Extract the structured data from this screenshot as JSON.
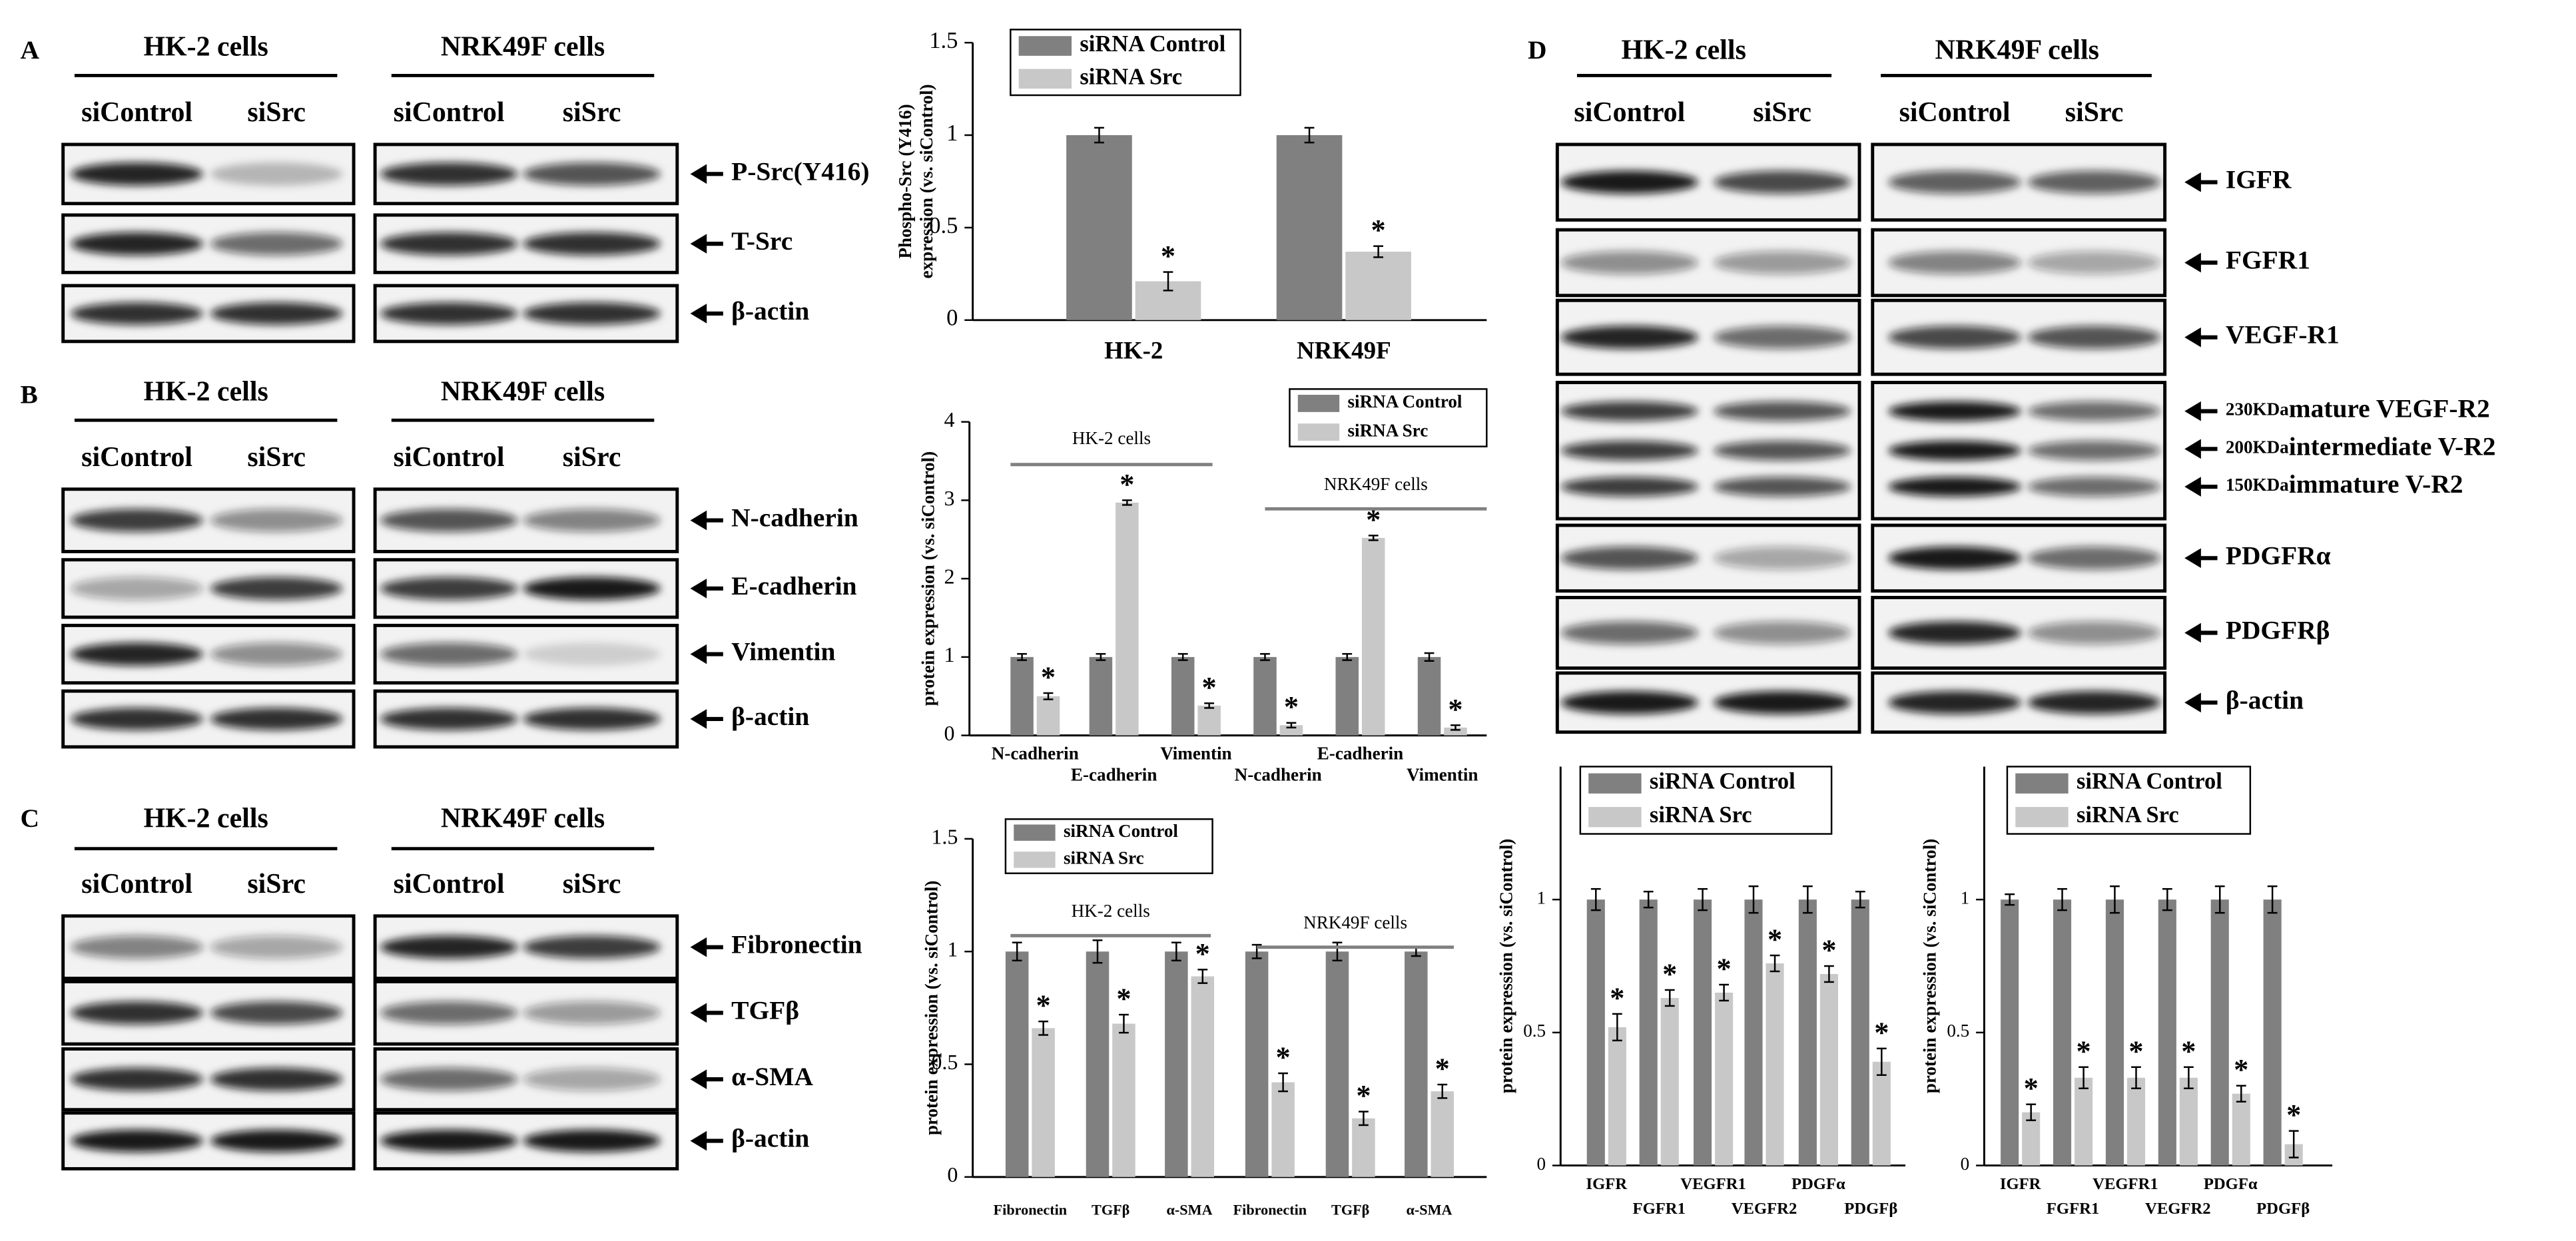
{
  "blots": [
    {
      "letter": "A",
      "cell_lines": [
        "HK-2 cells",
        "NRK49F cells"
      ],
      "conditions": [
        "siControl",
        "siSrc",
        "siControl",
        "siSrc"
      ],
      "proteins": [
        "P-Src(Y416)",
        "T-Src",
        "β-actin"
      ]
    },
    {
      "letter": "B",
      "cell_lines": [
        "HK-2 cells",
        "NRK49F cells"
      ],
      "conditions": [
        "siControl",
        "siSrc",
        "siControl",
        "siSrc"
      ],
      "proteins": [
        "N-cadherin",
        "E-cadherin",
        "Vimentin",
        "β-actin"
      ]
    },
    {
      "letter": "C",
      "cell_lines": [
        "HK-2 cells",
        "NRK49F cells"
      ],
      "conditions": [
        "siControl",
        "siSrc",
        "siControl",
        "siSrc"
      ],
      "proteins": [
        "Fibronectin",
        "TGFβ",
        "α-SMA",
        "β-actin"
      ]
    },
    {
      "letter": "D",
      "cell_lines": [
        "HK-2 cells",
        "NRK49F cells"
      ],
      "conditions": [
        "siControl",
        "siSrc",
        "siControl",
        "siSrc"
      ],
      "proteins": [
        "IGFR",
        "FGFR1",
        "VEGF-R1",
        [
          {
            "size": "230KDa",
            "name": "mature VEGF-R2"
          },
          {
            "size": "200KDa",
            "name": "intermediate V-R2"
          },
          {
            "size": "150KDa",
            "name": "immature V-R2"
          }
        ],
        "PDGFRα",
        "PDGFRβ",
        "β-actin"
      ]
    }
  ],
  "chart_data": [
    {
      "type": "bar",
      "y_label": [
        "Phospho-Src (Y416)",
        "expression (vs. siControl)"
      ],
      "categories": [
        "HK-2",
        "NRK49F"
      ],
      "series": [
        {
          "name": "siRNA Control",
          "color": "#808080",
          "values": [
            1,
            1
          ],
          "errors": [
            0.04,
            0.04
          ]
        },
        {
          "name": "siRNA Src",
          "color": "#c8c8c8",
          "values": [
            0.21,
            0.37
          ],
          "errors": [
            0.05,
            0.03
          ]
        }
      ],
      "ylim": [
        0,
        1.5
      ],
      "yticks": [
        0,
        0.5,
        1,
        1.5
      ],
      "significance": "*"
    },
    {
      "type": "bar",
      "y_label": [
        "protein expression (vs. siControl)"
      ],
      "group_labels": [
        "HK-2 cells",
        "NRK49F cells"
      ],
      "categories": [
        "N-cadherin",
        "E-cadherin",
        "Vimentin",
        "N-cadherin",
        "E-cadherin",
        "Vimentin"
      ],
      "series": [
        {
          "name": "siRNA Control",
          "color": "#808080",
          "values": [
            1,
            1,
            1,
            1,
            1,
            1
          ],
          "errors": [
            0.04,
            0.04,
            0.04,
            0.04,
            0.04,
            0.05
          ]
        },
        {
          "name": "siRNA Src",
          "color": "#c8c8c8",
          "values": [
            0.5,
            2.97,
            0.38,
            0.13,
            2.52,
            0.1
          ],
          "errors": [
            0.04,
            0.03,
            0.03,
            0.03,
            0.03,
            0.03
          ]
        }
      ],
      "ylim": [
        0,
        4
      ],
      "yticks": [
        0,
        1,
        2,
        3,
        4
      ],
      "significance": "*"
    },
    {
      "type": "bar",
      "y_label": [
        "protein expression (vs. siControl)"
      ],
      "group_labels": [
        "HK-2 cells",
        "NRK49F cells"
      ],
      "categories": [
        "Fibronectin",
        "TGFβ",
        "α-SMA",
        "Fibronectin",
        "TGFβ",
        "α-SMA"
      ],
      "series": [
        {
          "name": "siRNA Control",
          "color": "#808080",
          "values": [
            1,
            1,
            1,
            1,
            1,
            1
          ],
          "errors": [
            0.04,
            0.05,
            0.04,
            0.03,
            0.04,
            0.02
          ]
        },
        {
          "name": "siRNA Src",
          "color": "#c8c8c8",
          "values": [
            0.66,
            0.68,
            0.89,
            0.42,
            0.26,
            0.38
          ],
          "errors": [
            0.03,
            0.04,
            0.03,
            0.04,
            0.03,
            0.03
          ]
        }
      ],
      "ylim": [
        0,
        1.5
      ],
      "yticks": [
        0,
        0.5,
        1,
        1.5
      ],
      "significance": "*"
    },
    {
      "type": "bar",
      "y_label": [
        "protein expression (vs. siControl)"
      ],
      "categories": [
        "IGFR",
        "FGFR1",
        "VEGFR1",
        "VEGFR2",
        "PDGFα",
        "PDGFβ"
      ],
      "series": [
        {
          "name": "siRNA Control",
          "color": "#808080",
          "values": [
            1,
            1,
            1,
            1,
            1,
            1
          ],
          "errors": [
            0.04,
            0.03,
            0.04,
            0.05,
            0.05,
            0.03
          ]
        },
        {
          "name": "siRNA Src",
          "color": "#c8c8c8",
          "values": [
            0.52,
            0.63,
            0.65,
            0.76,
            0.72,
            0.39
          ],
          "errors": [
            0.05,
            0.03,
            0.03,
            0.03,
            0.03,
            0.05
          ]
        }
      ],
      "ylim": [
        0,
        1.5
      ],
      "yticks": [
        0,
        0.5,
        1
      ],
      "significance": "*"
    },
    {
      "type": "bar",
      "y_label": [
        "protein expression (vs. siControl)"
      ],
      "categories": [
        "IGFR",
        "FGFR1",
        "VEGFR1",
        "VEGFR2",
        "PDGFα",
        "PDGFβ"
      ],
      "series": [
        {
          "name": "siRNA Control",
          "color": "#808080",
          "values": [
            1,
            1,
            1,
            1,
            1,
            1
          ],
          "errors": [
            0.02,
            0.04,
            0.05,
            0.04,
            0.05,
            0.05
          ]
        },
        {
          "name": "siRNA Src",
          "color": "#c8c8c8",
          "values": [
            0.2,
            0.33,
            0.33,
            0.33,
            0.27,
            0.08
          ],
          "errors": [
            0.03,
            0.04,
            0.04,
            0.04,
            0.03,
            0.05
          ]
        }
      ],
      "ylim": [
        0,
        1.5
      ],
      "yticks": [
        0,
        0.5,
        1
      ],
      "significance": "*"
    }
  ]
}
